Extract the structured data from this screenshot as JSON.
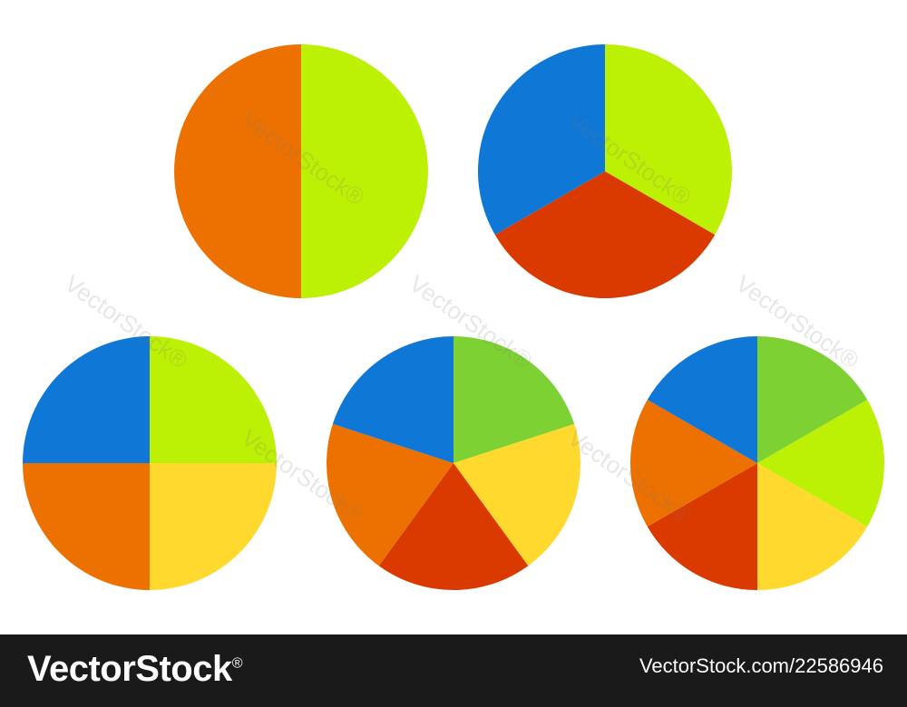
{
  "chart_data": [
    {
      "type": "pie",
      "values": [
        1,
        1
      ],
      "colors": [
        "#bcf005",
        "#ec7100"
      ]
    },
    {
      "type": "pie",
      "values": [
        1,
        1,
        1
      ],
      "colors": [
        "#bcf005",
        "#da3a00",
        "#0f77d5"
      ]
    },
    {
      "type": "pie",
      "values": [
        1,
        1,
        1,
        1
      ],
      "colors": [
        "#bcf005",
        "#ffd92e",
        "#ec7100",
        "#0f77d5"
      ]
    },
    {
      "type": "pie",
      "values": [
        1,
        1,
        1,
        1,
        1
      ],
      "colors": [
        "#7ed133",
        "#ffd92e",
        "#da3a00",
        "#ec7100",
        "#0f77d5"
      ]
    },
    {
      "type": "pie",
      "values": [
        1,
        1,
        1,
        1,
        1,
        1
      ],
      "colors": [
        "#7ed133",
        "#bcf005",
        "#ffd92e",
        "#da3a00",
        "#ec7100",
        "#0f77d5"
      ]
    }
  ],
  "watermark": {
    "text": "VectorStock®"
  },
  "footer": {
    "brand": "VectorStock",
    "brand_mark": "®",
    "image_id": "VectorStock.com/22586946"
  }
}
